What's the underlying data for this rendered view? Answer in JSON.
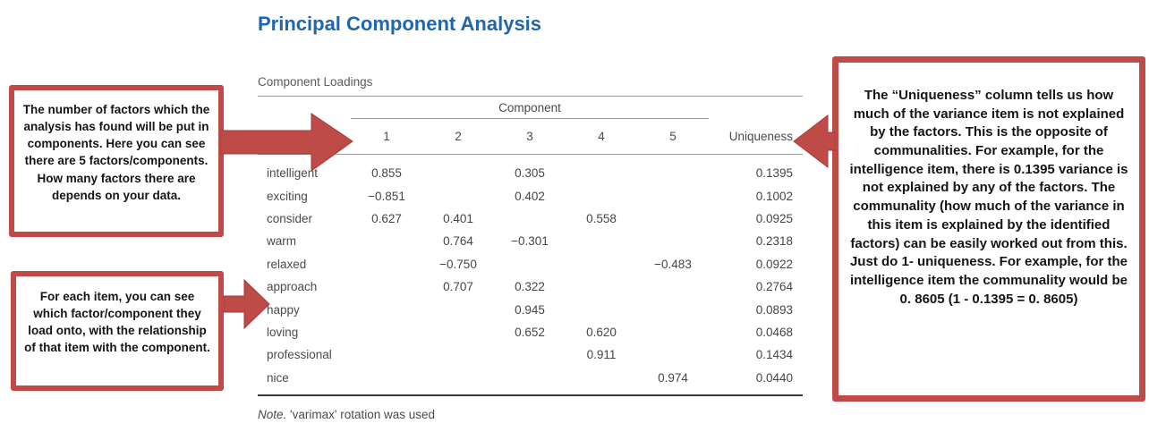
{
  "title": "Principal Component Analysis",
  "colors": {
    "title_blue": "#2066AC",
    "annotation_red": "#BE4B48"
  },
  "table": {
    "caption": "Component Loadings",
    "group_header": "Component",
    "component_columns": [
      "1",
      "2",
      "3",
      "4",
      "5"
    ],
    "uniqueness_header": "Uniqueness",
    "rows": [
      {
        "label": "intelligent",
        "c1": "0.855",
        "c2": "",
        "c3": "0.305",
        "c4": "",
        "c5": "",
        "uniqueness": "0.1395"
      },
      {
        "label": "exciting",
        "c1": "−0.851",
        "c2": "",
        "c3": "0.402",
        "c4": "",
        "c5": "",
        "uniqueness": "0.1002"
      },
      {
        "label": "consider",
        "c1": "0.627",
        "c2": "0.401",
        "c3": "",
        "c4": "0.558",
        "c5": "",
        "uniqueness": "0.0925"
      },
      {
        "label": "warm",
        "c1": "",
        "c2": "0.764",
        "c3": "−0.301",
        "c4": "",
        "c5": "",
        "uniqueness": "0.2318"
      },
      {
        "label": "relaxed",
        "c1": "",
        "c2": "−0.750",
        "c3": "",
        "c4": "",
        "c5": "−0.483",
        "uniqueness": "0.0922"
      },
      {
        "label": "approach",
        "c1": "",
        "c2": "0.707",
        "c3": "0.322",
        "c4": "",
        "c5": "",
        "uniqueness": "0.2764"
      },
      {
        "label": "happy",
        "c1": "",
        "c2": "",
        "c3": "0.945",
        "c4": "",
        "c5": "",
        "uniqueness": "0.0893"
      },
      {
        "label": "loving",
        "c1": "",
        "c2": "",
        "c3": "0.652",
        "c4": "0.620",
        "c5": "",
        "uniqueness": "0.0468"
      },
      {
        "label": "professional",
        "c1": "",
        "c2": "",
        "c3": "",
        "c4": "0.911",
        "c5": "",
        "uniqueness": "0.1434"
      },
      {
        "label": "nice",
        "c1": "",
        "c2": "",
        "c3": "",
        "c4": "",
        "c5": "0.974",
        "uniqueness": "0.0440"
      }
    ],
    "note_prefix": "Note.",
    "note_body": " 'varimax' rotation was used"
  },
  "annotations": {
    "left_top": {
      "text": "The number of factors which the analysis has found will be put in components. Here you can see there are 5 factors/components. How many factors there are depends on your data."
    },
    "left_bottom": {
      "text": "For each item, you can see which factor/component they load onto, with the relationship of that item with the component."
    },
    "right": {
      "text": "The “Uniqueness” column tells us how much of the variance item is not explained by the factors. This is the opposite of communalities. For example, for the intelligence item, there is 0.1395 variance is not explained by any of the factors. The communality (how much of the variance in this item is explained by the identified factors) can be easily worked out from this. Just do 1- uniqueness. For example, for the intelligence item the communality would be 0. 8605 (1 - 0.1395 = 0. 8605)"
    }
  }
}
